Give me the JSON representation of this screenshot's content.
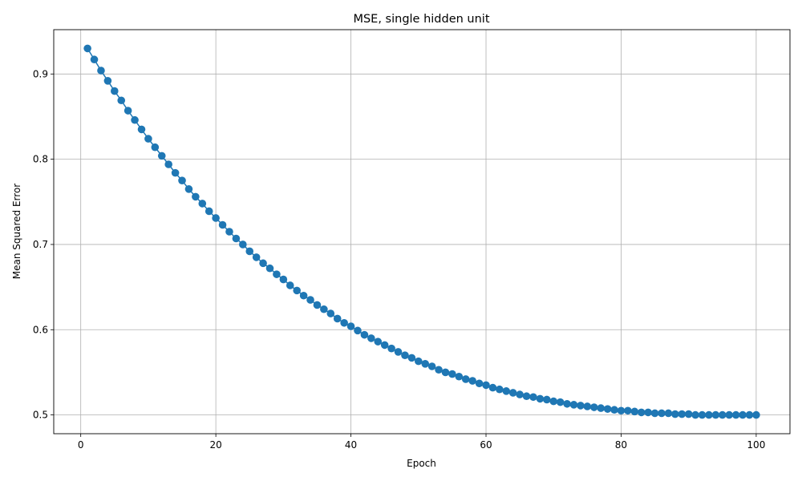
{
  "chart_data": {
    "type": "line",
    "title": "MSE, single hidden unit",
    "xlabel": "Epoch",
    "ylabel": "Mean Squared Error",
    "xlim": [
      -4,
      105
    ],
    "ylim": [
      0.478,
      0.952
    ],
    "xticks": [
      0,
      20,
      40,
      60,
      80,
      100
    ],
    "yticks": [
      0.5,
      0.6,
      0.7,
      0.8,
      0.9
    ],
    "ytick_labels": [
      "0.5",
      "0.6",
      "0.7",
      "0.8",
      "0.9"
    ],
    "grid": true,
    "series": [
      {
        "color": "#1f77b4",
        "marker": "circle",
        "x": [
          1,
          2,
          3,
          4,
          5,
          6,
          7,
          8,
          9,
          10,
          11,
          12,
          13,
          14,
          15,
          16,
          17,
          18,
          19,
          20,
          21,
          22,
          23,
          24,
          25,
          26,
          27,
          28,
          29,
          30,
          31,
          32,
          33,
          34,
          35,
          36,
          37,
          38,
          39,
          40,
          41,
          42,
          43,
          44,
          45,
          46,
          47,
          48,
          49,
          50,
          51,
          52,
          53,
          54,
          55,
          56,
          57,
          58,
          59,
          60,
          61,
          62,
          63,
          64,
          65,
          66,
          67,
          68,
          69,
          70,
          71,
          72,
          73,
          74,
          75,
          76,
          77,
          78,
          79,
          80,
          81,
          82,
          83,
          84,
          85,
          86,
          87,
          88,
          89,
          90,
          91,
          92,
          93,
          94,
          95,
          96,
          97,
          98,
          99,
          100
        ],
        "y": [
          0.93,
          0.917,
          0.904,
          0.892,
          0.88,
          0.869,
          0.857,
          0.846,
          0.835,
          0.824,
          0.814,
          0.804,
          0.794,
          0.784,
          0.775,
          0.765,
          0.756,
          0.748,
          0.739,
          0.731,
          0.723,
          0.715,
          0.707,
          0.7,
          0.692,
          0.685,
          0.678,
          0.672,
          0.665,
          0.659,
          0.652,
          0.646,
          0.64,
          0.635,
          0.629,
          0.624,
          0.619,
          0.613,
          0.608,
          0.604,
          0.599,
          0.594,
          0.59,
          0.586,
          0.582,
          0.578,
          0.574,
          0.57,
          0.567,
          0.563,
          0.56,
          0.557,
          0.553,
          0.55,
          0.548,
          0.545,
          0.542,
          0.54,
          0.537,
          0.535,
          0.532,
          0.53,
          0.528,
          0.526,
          0.524,
          0.522,
          0.521,
          0.519,
          0.518,
          0.516,
          0.515,
          0.513,
          0.512,
          0.511,
          0.51,
          0.509,
          0.508,
          0.507,
          0.506,
          0.505,
          0.505,
          0.504,
          0.503,
          0.503,
          0.502,
          0.502,
          0.502,
          0.501,
          0.501,
          0.501,
          0.5,
          0.5,
          0.5,
          0.5,
          0.5,
          0.5,
          0.5,
          0.5,
          0.5,
          0.5
        ]
      }
    ]
  }
}
